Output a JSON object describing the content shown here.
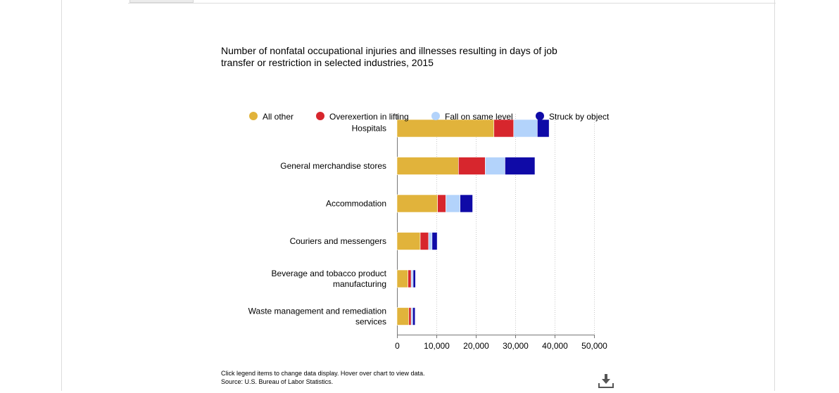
{
  "chart_data": {
    "type": "bar",
    "orientation": "horizontal",
    "stacked": true,
    "title": "Number of nonfatal occupational injuries and illnesses resulting in days of job transfer or restriction in selected industries, 2015",
    "categories": [
      [
        "Hospitals"
      ],
      [
        "General merchandise stores"
      ],
      [
        "Accommodation"
      ],
      [
        "Couriers and messengers"
      ],
      [
        "Beverage and tobacco product",
        "manufacturing"
      ],
      [
        "Waste management and remediation",
        "services"
      ]
    ],
    "series": [
      {
        "name": "All other",
        "color": "#e1b33b",
        "values": [
          24600,
          15600,
          10300,
          5900,
          2800,
          3000
        ]
      },
      {
        "name": "Overexertion in lifting",
        "color": "#d7262d",
        "values": [
          5000,
          6800,
          2100,
          2100,
          800,
          600
        ]
      },
      {
        "name": "Fall on same level",
        "color": "#b3d3fb",
        "values": [
          6000,
          5000,
          3600,
          900,
          500,
          400
        ]
      },
      {
        "name": "Struck by object",
        "color": "#0f0aa7",
        "values": [
          3000,
          7600,
          3200,
          1300,
          600,
          600
        ]
      }
    ],
    "xlim": [
      0,
      50000
    ],
    "xticks": [
      0,
      10000,
      20000,
      30000,
      40000,
      50000
    ],
    "xtick_labels": [
      "0",
      "10,000",
      "20,000",
      "30,000",
      "40,000",
      "50,000"
    ],
    "xlabel": "",
    "ylabel": "",
    "grid": "vertical dotted",
    "legend_position": "top"
  },
  "footnote": {
    "line1": "Click legend items to change data display. Hover over chart to view data.",
    "line2": "Source: U.S. Bureau of Labor Statistics."
  },
  "download_icon": "download-icon"
}
